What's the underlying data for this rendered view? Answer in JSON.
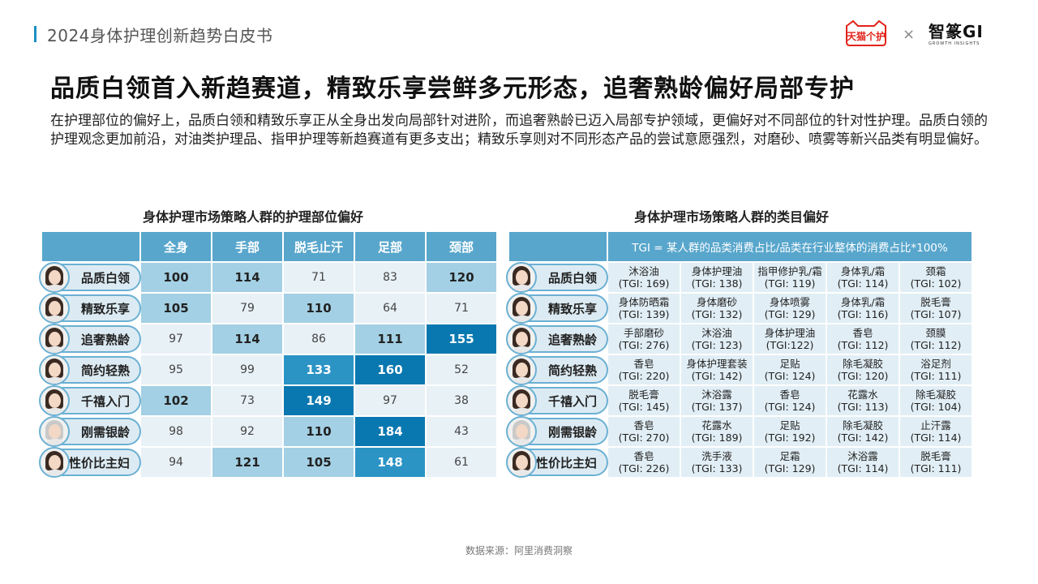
{
  "header": {
    "report_title": "2024身体护理创新趋势白皮书"
  },
  "logos": {
    "tmall_line1": "天猫个护",
    "separator": "×",
    "zhizhuan": "智篆GI",
    "zhizhuan_sub": "GROWTH INSIGHTS"
  },
  "main_title": "品质白领首入新趋赛道，精致乐享尝鲜多元形态，追奢熟龄偏好局部专护",
  "description": "在护理部位的偏好上，品质白领和精致乐享正从全身出发向局部针对进阶，而追奢熟龄已迈入局部专护领域，更偏好对不同部位的针对性护理。品质白领的护理观念更加前沿，对油类护理品、指甲护理等新趋赛道有更多支出；精致乐享则对不同形态产品的尝试意愿强烈，对磨砂、喷雾等新兴品类有明显偏好。",
  "left_table": {
    "title": "身体护理市场策略人群的护理部位偏好",
    "columns": [
      "全身",
      "手部",
      "脱毛止汗",
      "足部",
      "颈部"
    ],
    "rows": [
      {
        "label": "品质白领",
        "values": [
          "100",
          "114",
          "71",
          "83",
          "120"
        ],
        "levels": [
          1,
          1,
          0,
          0,
          1
        ]
      },
      {
        "label": "精致乐享",
        "values": [
          "105",
          "79",
          "110",
          "64",
          "71"
        ],
        "levels": [
          1,
          0,
          1,
          0,
          0
        ]
      },
      {
        "label": "追奢熟龄",
        "values": [
          "97",
          "114",
          "86",
          "111",
          "155"
        ],
        "levels": [
          0,
          1,
          0,
          1,
          3
        ]
      },
      {
        "label": "简约轻熟",
        "values": [
          "95",
          "99",
          "133",
          "160",
          "52"
        ],
        "levels": [
          0,
          0,
          2,
          3,
          0
        ]
      },
      {
        "label": "千禧入门",
        "values": [
          "102",
          "73",
          "149",
          "97",
          "38"
        ],
        "levels": [
          1,
          0,
          3,
          0,
          0
        ]
      },
      {
        "label": "刚需银龄",
        "values": [
          "98",
          "92",
          "110",
          "184",
          "43"
        ],
        "levels": [
          0,
          0,
          1,
          3,
          0
        ]
      },
      {
        "label": "性价比主妇",
        "values": [
          "94",
          "121",
          "105",
          "148",
          "61"
        ],
        "levels": [
          0,
          1,
          1,
          2,
          0
        ]
      }
    ]
  },
  "right_table": {
    "title": "身体护理市场策略人群的类目偏好",
    "header_note": "TGI = 某人群的品类消费占比/品类在行业整体的消费占比*100%",
    "rows": [
      {
        "label": "品质白领",
        "cells": [
          [
            "沐浴油",
            "(TGI: 169)"
          ],
          [
            "身体护理油",
            "(TGI: 138)"
          ],
          [
            "指甲修护乳/霜",
            "(TGI: 119)"
          ],
          [
            "身体乳/霜",
            "(TGI: 114)"
          ],
          [
            "颈霜",
            "(TGI: 102)"
          ]
        ]
      },
      {
        "label": "精致乐享",
        "cells": [
          [
            "身体防晒霜",
            "(TGI: 139)"
          ],
          [
            "身体磨砂",
            "(TGI: 132)"
          ],
          [
            "身体喷雾",
            "(TGI: 129)"
          ],
          [
            "身体乳/霜",
            "(TGI: 116)"
          ],
          [
            "脱毛膏",
            "(TGI: 107)"
          ]
        ]
      },
      {
        "label": "追奢熟龄",
        "cells": [
          [
            "手部磨砂",
            "(TGI: 276)"
          ],
          [
            "沐浴油",
            "(TGI: 123)"
          ],
          [
            "身体护理油",
            "(TGI:122)"
          ],
          [
            "香皂",
            "(TGI: 112)"
          ],
          [
            "颈膜",
            "(TGI: 112)"
          ]
        ]
      },
      {
        "label": "简约轻熟",
        "cells": [
          [
            "香皂",
            "(TGI: 220)"
          ],
          [
            "身体护理套装",
            "(TGI: 142)"
          ],
          [
            "足贴",
            "(TGI: 124)"
          ],
          [
            "除毛凝胶",
            "(TGI: 120)"
          ],
          [
            "浴足剂",
            "(TGI: 111)"
          ]
        ]
      },
      {
        "label": "千禧入门",
        "cells": [
          [
            "脱毛膏",
            "(TGI: 145)"
          ],
          [
            "沐浴露",
            "(TGI: 137)"
          ],
          [
            "香皂",
            "(TGI: 124)"
          ],
          [
            "花露水",
            "(TGI: 113)"
          ],
          [
            "除毛凝胶",
            "(TGI: 104)"
          ]
        ]
      },
      {
        "label": "刚需银龄",
        "cells": [
          [
            "香皂",
            "(TGI: 270)"
          ],
          [
            "花露水",
            "(TGI: 189)"
          ],
          [
            "足贴",
            "(TGI: 192)"
          ],
          [
            "除毛凝胶",
            "(TGI: 142)"
          ],
          [
            "止汗露",
            "(TGI: 114)"
          ]
        ]
      },
      {
        "label": "性价比主妇",
        "cells": [
          [
            "香皂",
            "(TGI: 226)"
          ],
          [
            "洗手液",
            "(TGI: 133)"
          ],
          [
            "足霜",
            "(TGI: 129)"
          ],
          [
            "沐浴露",
            "(TGI: 114)"
          ],
          [
            "脱毛膏",
            "(TGI: 111)"
          ]
        ]
      }
    ]
  },
  "footer": {
    "source": "数据来源：阿里消费洞察"
  }
}
